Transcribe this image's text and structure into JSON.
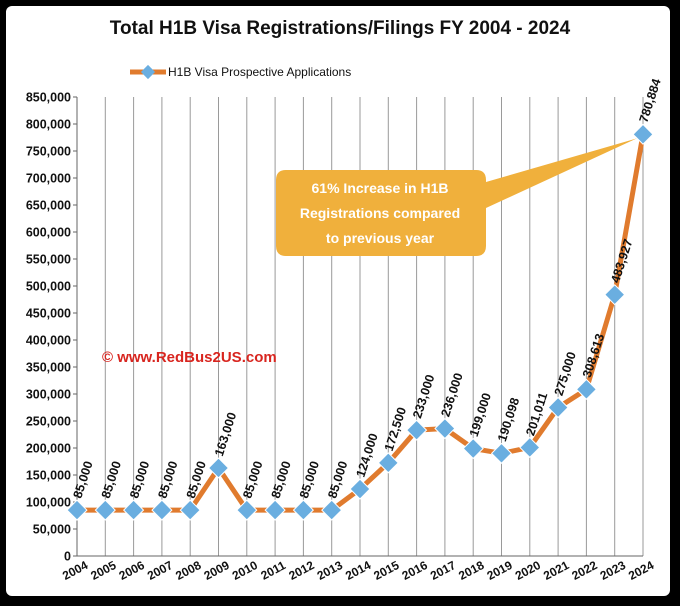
{
  "chart_data": {
    "type": "line",
    "title": "Total H1B Visa Registrations/Filings FY 2004 - 2024",
    "categories": [
      "2004",
      "2005",
      "2006",
      "2007",
      "2008",
      "2009",
      "2010",
      "2011",
      "2012",
      "2013",
      "2014",
      "2015",
      "2016",
      "2017",
      "2018",
      "2019",
      "2020",
      "2021",
      "2022",
      "2023",
      "2024"
    ],
    "series": [
      {
        "name": "H1B Visa Prospective Applications",
        "values": [
          85000,
          85000,
          85000,
          85000,
          85000,
          163000,
          85000,
          85000,
          85000,
          85000,
          124000,
          172500,
          233000,
          236000,
          199000,
          190098,
          201011,
          275000,
          308613,
          483927,
          780884
        ],
        "labels": [
          "85,000",
          "85,000",
          "85,000",
          "85,000",
          "85,000",
          "163,000",
          "85,000",
          "85,000",
          "85,000",
          "85,000",
          "124,000",
          "172,500",
          "233,000",
          "236,000",
          "199,000",
          "190,098",
          "201,011",
          "275,000",
          "308,613",
          "483,927",
          "780,884"
        ]
      }
    ],
    "ylim": [
      0,
      850000
    ],
    "ytick_labels": [
      "0",
      "50,000",
      "100,000",
      "150,000",
      "200,000",
      "250,000",
      "300,000",
      "350,000",
      "400,000",
      "450,000",
      "500,000",
      "550,000",
      "600,000",
      "650,000",
      "700,000",
      "750,000",
      "800,000",
      "850,000"
    ],
    "grid": "vertical",
    "legend_position": "top-left",
    "annotation": {
      "lines": [
        "61% Increase in H1B",
        "Registrations compared",
        "to previous year"
      ]
    },
    "watermark": "© www.RedBus2US.com",
    "colors": {
      "line": "#E07B2E",
      "marker": "#6AAEE0",
      "callout": "#F0B03C",
      "watermark": "#D8251F",
      "grid": "#9a9a9a"
    }
  }
}
